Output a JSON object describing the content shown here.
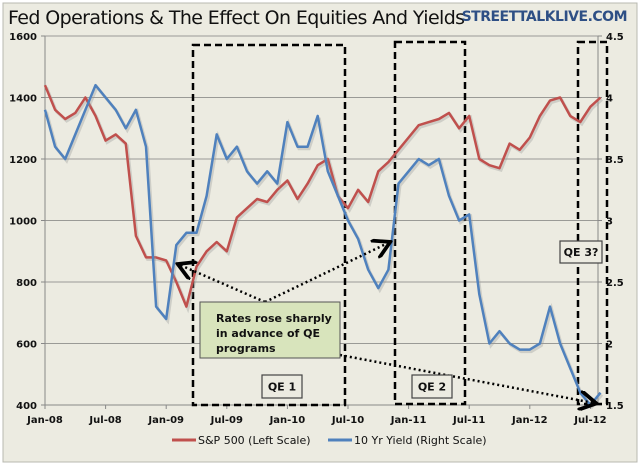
{
  "chart_data": {
    "type": "line",
    "title": "Fed Operations & The Effect On Equities And Yields",
    "brand": "STREETTALKLIVE.COM",
    "x_ticks": [
      "Jan-08",
      "Jul-08",
      "Jan-09",
      "Jul-09",
      "Jan-10",
      "Jul-10",
      "Jan-11",
      "Jul-11",
      "Jan-12",
      "Jul-12"
    ],
    "x": [
      "2008-01",
      "2008-02",
      "2008-03",
      "2008-04",
      "2008-05",
      "2008-06",
      "2008-07",
      "2008-08",
      "2008-09",
      "2008-10",
      "2008-11",
      "2008-12",
      "2009-01",
      "2009-02",
      "2009-03",
      "2009-04",
      "2009-05",
      "2009-06",
      "2009-07",
      "2009-08",
      "2009-09",
      "2009-10",
      "2009-11",
      "2009-12",
      "2010-01",
      "2010-02",
      "2010-03",
      "2010-04",
      "2010-05",
      "2010-06",
      "2010-07",
      "2010-08",
      "2010-09",
      "2010-10",
      "2010-11",
      "2010-12",
      "2011-01",
      "2011-02",
      "2011-03",
      "2011-04",
      "2011-05",
      "2011-06",
      "2011-07",
      "2011-08",
      "2011-09",
      "2011-10",
      "2011-11",
      "2011-12",
      "2012-01",
      "2012-02",
      "2012-03",
      "2012-04",
      "2012-05",
      "2012-06",
      "2012-07",
      "2012-08"
    ],
    "left_axis": {
      "ylim": [
        400,
        1600
      ],
      "ticks": [
        "400",
        "600",
        "800",
        "1000",
        "1200",
        "1400",
        "1600"
      ]
    },
    "right_axis": {
      "ylim": [
        1.5,
        4.5
      ],
      "ticks": [
        "1.5",
        "2",
        "2.5",
        "3",
        "3.5",
        "4",
        "4.5"
      ]
    },
    "grid": true,
    "legend_position": "bottom",
    "series": [
      {
        "name": "S&P 500 (Left Scale)",
        "axis": "left",
        "color": "#C0504D",
        "values": [
          1440,
          1360,
          1330,
          1350,
          1400,
          1340,
          1260,
          1280,
          1250,
          950,
          880,
          880,
          870,
          800,
          720,
          850,
          900,
          930,
          900,
          1010,
          1040,
          1070,
          1060,
          1100,
          1130,
          1070,
          1120,
          1180,
          1200,
          1080,
          1040,
          1100,
          1060,
          1160,
          1190,
          1230,
          1270,
          1310,
          1320,
          1330,
          1350,
          1300,
          1340,
          1200,
          1180,
          1170,
          1250,
          1230,
          1270,
          1340,
          1390,
          1400,
          1340,
          1320,
          1370,
          1400
        ]
      },
      {
        "name": "10 Yr Yield (Right Scale)",
        "axis": "right",
        "color": "#4F81BD",
        "values": [
          3.9,
          3.6,
          3.5,
          3.7,
          3.9,
          4.1,
          4.0,
          3.9,
          3.75,
          3.9,
          3.6,
          2.3,
          2.2,
          2.8,
          2.9,
          2.9,
          3.2,
          3.7,
          3.5,
          3.6,
          3.4,
          3.3,
          3.4,
          3.3,
          3.8,
          3.6,
          3.6,
          3.85,
          3.4,
          3.2,
          3.0,
          2.85,
          2.6,
          2.45,
          2.6,
          3.3,
          3.4,
          3.5,
          3.45,
          3.5,
          3.2,
          3.0,
          3.05,
          2.4,
          2.0,
          2.1,
          2.0,
          1.95,
          1.95,
          2.0,
          2.3,
          2.0,
          1.8,
          1.6,
          1.5,
          1.6
        ]
      }
    ],
    "annotations": {
      "qe1": "QE 1",
      "qe2": "QE 2",
      "qe3": "QE 3?",
      "note": [
        "Rates rose sharply",
        "in advance of QE",
        "programs"
      ]
    }
  }
}
